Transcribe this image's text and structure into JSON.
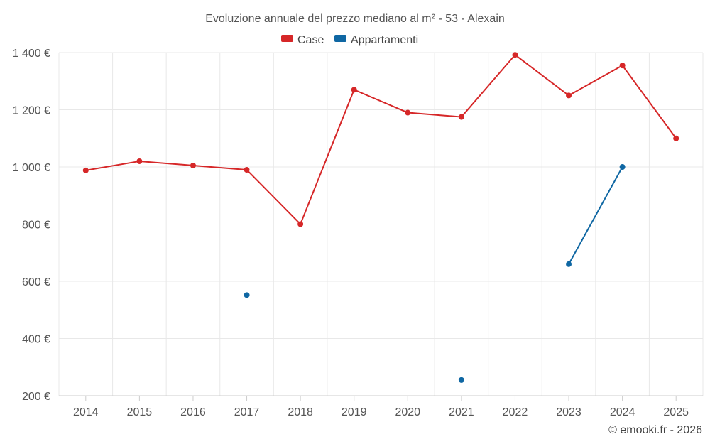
{
  "chart_data": {
    "type": "line",
    "title": "Evoluzione annuale del prezzo mediano al m² - 53 - Alexain",
    "categories": [
      "2014",
      "2015",
      "2016",
      "2017",
      "2018",
      "2019",
      "2020",
      "2021",
      "2022",
      "2023",
      "2024",
      "2025"
    ],
    "y_ticks": [
      200,
      400,
      600,
      800,
      1000,
      1200,
      1400
    ],
    "y_tick_labels": [
      "200 €",
      "400 €",
      "600 €",
      "800 €",
      "1 000 €",
      "1 200 €",
      "1 400 €"
    ],
    "ylim": [
      200,
      1400
    ],
    "grid": true,
    "legend_position": "top-center",
    "series": [
      {
        "name": "Case",
        "color": "#d62728",
        "values": [
          988,
          1020,
          1005,
          990,
          800,
          1270,
          1190,
          1175,
          1392,
          1250,
          1355,
          1100
        ]
      },
      {
        "name": "Appartamenti",
        "color": "#0f67a3",
        "values": [
          null,
          null,
          null,
          552,
          null,
          null,
          null,
          255,
          null,
          660,
          1000,
          null
        ]
      }
    ]
  },
  "credit": "© emooki.fr - 2026"
}
